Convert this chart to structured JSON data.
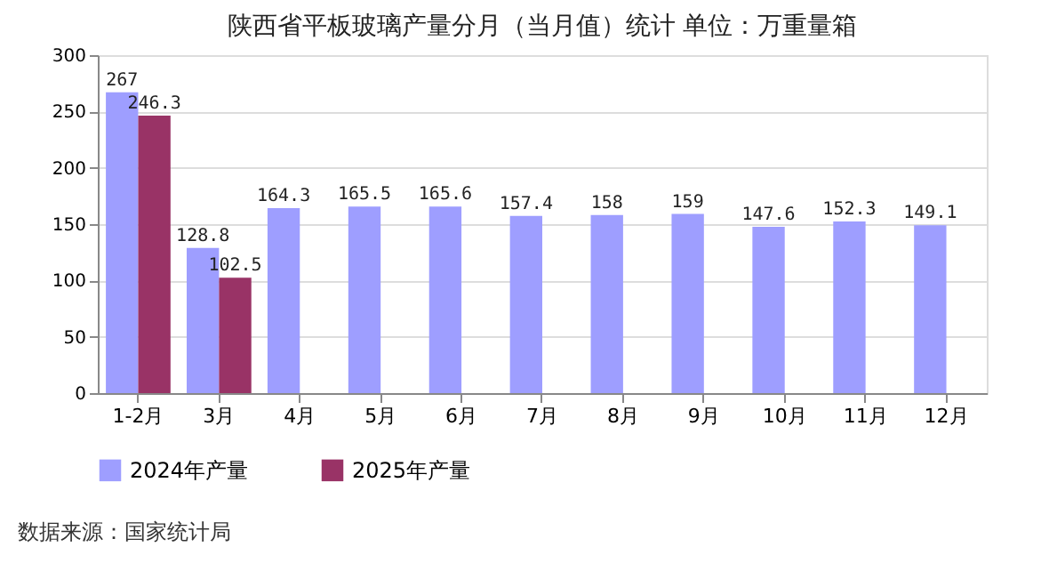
{
  "chart_data": {
    "type": "bar",
    "title": "陕西省平板玻璃产量分月（当月值）统计  单位：万重量箱",
    "categories": [
      "1-2月",
      "3月",
      "4月",
      "5月",
      "6月",
      "7月",
      "8月",
      "9月",
      "10月",
      "11月",
      "12月"
    ],
    "series": [
      {
        "name": "2024年产量",
        "color": "#9e9eff",
        "values": [
          267,
          128.8,
          164.3,
          165.5,
          165.6,
          157.4,
          158,
          159,
          147.6,
          152.3,
          149.1
        ]
      },
      {
        "name": "2025年产量",
        "color": "#993366",
        "values": [
          246.3,
          102.5,
          null,
          null,
          null,
          null,
          null,
          null,
          null,
          null,
          null
        ]
      }
    ],
    "ylim": [
      0,
      300
    ],
    "yticks": [
      0,
      50,
      100,
      150,
      200,
      250,
      300
    ],
    "grid": "y",
    "legend": "bottom",
    "data_labels": true,
    "annotations": [
      "数据来源：国家统计局"
    ]
  }
}
